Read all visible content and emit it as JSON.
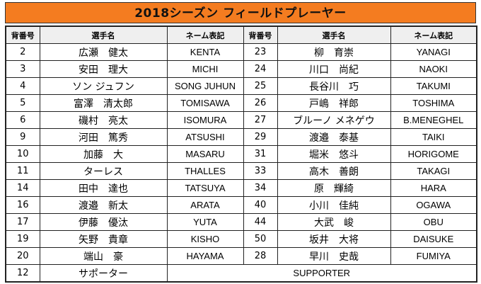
{
  "title": "2018シーズン フィールドプレーヤー",
  "headers": [
    "背番号",
    "選手名",
    "ネーム表記",
    "背番号",
    "選手名",
    "ネーム表記"
  ],
  "rows": [
    {
      "l_num": "2",
      "l_name": "広瀬　健太",
      "l_en": "KENTA",
      "r_num": "23",
      "r_name": "柳　育崇",
      "r_en": "YANAGI"
    },
    {
      "l_num": "3",
      "l_name": "安田　理大",
      "l_en": "MICHI",
      "r_num": "24",
      "r_name": "川口　尚紀",
      "r_en": "NAOKI"
    },
    {
      "l_num": "4",
      "l_name": "ソン ジュフン",
      "l_en": "SONG JUHUN",
      "r_num": "25",
      "r_name": "長谷川　巧",
      "r_en": "TAKUMI"
    },
    {
      "l_num": "5",
      "l_name": "富澤　清太郎",
      "l_en": "TOMISAWA",
      "r_num": "26",
      "r_name": "戸嶋　祥郎",
      "r_en": "TOSHIMA"
    },
    {
      "l_num": "6",
      "l_name": "磯村　亮太",
      "l_en": "ISOMURA",
      "r_num": "27",
      "r_name": "ブルーノ メネゲウ",
      "r_en": "B.MENEGHEL"
    },
    {
      "l_num": "9",
      "l_name": "河田　篤秀",
      "l_en": "ATSUSHI",
      "r_num": "29",
      "r_name": "渡邉　泰基",
      "r_en": "TAIKI"
    },
    {
      "l_num": "10",
      "l_name": "加藤　大",
      "l_en": "MASARU",
      "r_num": "31",
      "r_name": "堀米　悠斗",
      "r_en": "HORIGOME"
    },
    {
      "l_num": "11",
      "l_name": "ターレス",
      "l_en": "THALLES",
      "r_num": "33",
      "r_name": "高木　善朗",
      "r_en": "TAKAGI"
    },
    {
      "l_num": "14",
      "l_name": "田中　達也",
      "l_en": "TATSUYA",
      "r_num": "34",
      "r_name": "原　輝綺",
      "r_en": "HARA"
    },
    {
      "l_num": "16",
      "l_name": "渡邉　新太",
      "l_en": "ARATA",
      "r_num": "40",
      "r_name": "小川　佳純",
      "r_en": "OGAWA"
    },
    {
      "l_num": "17",
      "l_name": "伊藤　優汰",
      "l_en": "YUTA",
      "r_num": "44",
      "r_name": "大武　峻",
      "r_en": "OBU"
    },
    {
      "l_num": "19",
      "l_name": "矢野　貴章",
      "l_en": "KISHO",
      "r_num": "50",
      "r_name": "坂井　大将",
      "r_en": "DAISUKE"
    },
    {
      "l_num": "20",
      "l_name": "端山　豪",
      "l_en": "HAYAMA",
      "r_num": "28",
      "r_name": "早川　史哉",
      "r_en": "FUMIYA"
    }
  ],
  "supporter": {
    "num": "12",
    "name": "サポーター",
    "en": "SUPPORTER"
  },
  "colors": {
    "title_bg": "#f47c20",
    "header_bg": "#efefef",
    "border": "#222222"
  }
}
